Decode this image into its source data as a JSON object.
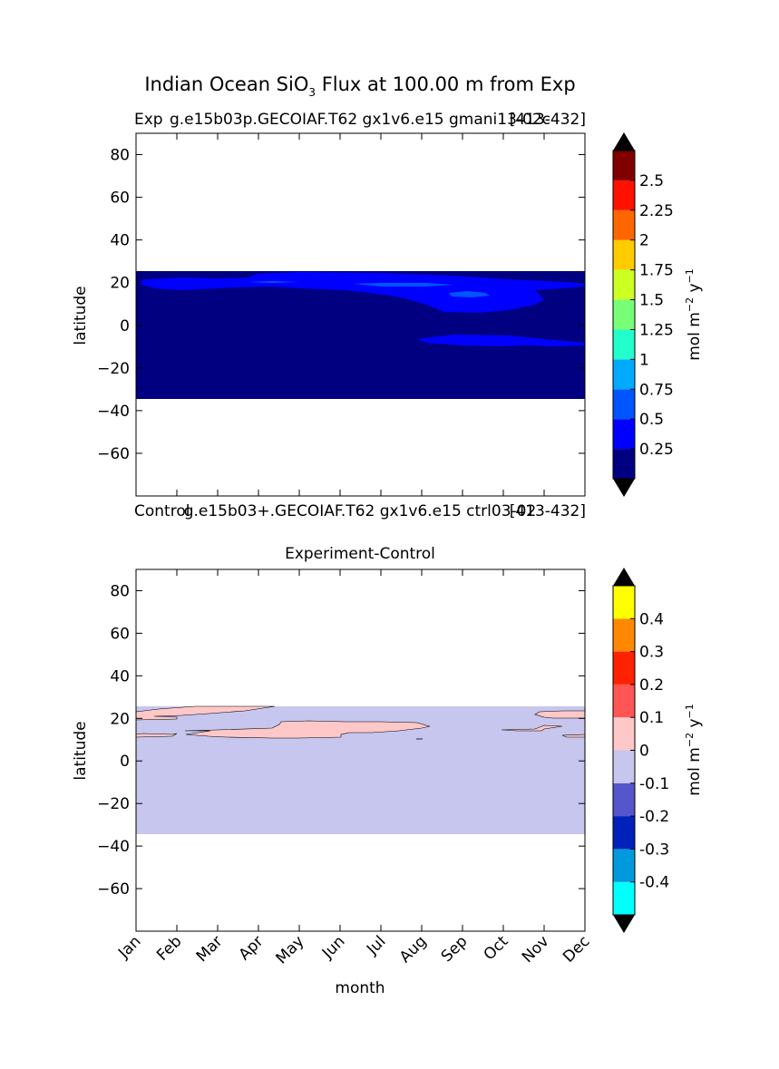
{
  "figure": {
    "title_main": "Indian Ocean SiO",
    "title_sub": "3",
    "title_rest": " Flux at 100.00 m from Exp"
  },
  "colorbar_unit": {
    "prefix": "mol m",
    "exp1": "−2",
    "mid": " y",
    "exp2": "−1"
  },
  "chart_data": [
    {
      "type": "heatmap",
      "panel": "experiment",
      "title_left": "Exp",
      "title_center": "g.e15b03p.GECOIAF.T62 gx1v6.e15 gmani13-02c",
      "title_right": "[413-432]",
      "xlabel": "",
      "ylabel": "latitude",
      "ylim": [
        -80,
        90
      ],
      "yticks": [
        "80",
        "60",
        "40",
        "20",
        "0",
        "−20",
        "−40",
        "−60"
      ],
      "x_categories": [
        "Jan",
        "Feb",
        "Mar",
        "Apr",
        "May",
        "Jun",
        "Jul",
        "Aug",
        "Sep",
        "Oct",
        "Nov",
        "Dec"
      ],
      "data_lat_range": [
        -34,
        26
      ],
      "background_level": "0–0.25",
      "contour_levels": [
        "0.25",
        "0.5",
        "0.75",
        "1",
        "1.25",
        "1.5",
        "1.75",
        "2",
        "2.25",
        "2.5"
      ],
      "level_colors": [
        "#000080",
        "#0000ff",
        "#0055ff",
        "#00aaff",
        "#22ffcc",
        "#77ff77",
        "#ccff22",
        "#ffcc00",
        "#ff6600",
        "#ff1100",
        "#800000"
      ],
      "extend": "both",
      "patches": [
        {
          "level": 1,
          "lat_range": [
            18,
            25
          ],
          "months": [
            0,
            11
          ],
          "note": "0.25–0.5 band along northern edge"
        },
        {
          "level": 1,
          "lat_range": [
            5,
            18
          ],
          "months": [
            6.5,
            10
          ],
          "note": "0.25–0.5 Aug–Oct"
        },
        {
          "level": 1,
          "lat_range": [
            -9,
            -4
          ],
          "months": [
            7,
            11
          ],
          "note": "0.25–0.5 southern band"
        },
        {
          "level": 2,
          "lat_range": [
            13,
            16
          ],
          "months": [
            8.2,
            8.9
          ],
          "note": "0.5–0.75 small core"
        }
      ]
    },
    {
      "type": "heatmap",
      "panel": "control",
      "title_left": "Control",
      "title_center": "g.e15b03+.GECOIAF.T62 gx1v6.e15 ctrl03-02",
      "title_right": "[413-432]"
    },
    {
      "type": "heatmap",
      "panel": "difference",
      "title": "Experiment-Control",
      "xlabel": "month",
      "ylabel": "latitude",
      "ylim": [
        -80,
        90
      ],
      "yticks": [
        "80",
        "60",
        "40",
        "20",
        "0",
        "−20",
        "−40",
        "−60"
      ],
      "x_categories": [
        "Jan",
        "Feb",
        "Mar",
        "Apr",
        "May",
        "Jun",
        "Jul",
        "Aug",
        "Sep",
        "Oct",
        "Nov",
        "Dec"
      ],
      "data_lat_range": [
        -34,
        26
      ],
      "background_level": "-0.1–0",
      "contour_levels": [
        "-0.4",
        "-0.3",
        "-0.2",
        "-0.1",
        "0",
        "0.1",
        "0.2",
        "0.3",
        "0.4"
      ],
      "level_colors": [
        "#00ffff",
        "#0099dd",
        "#0022bb",
        "#5555cc",
        "#c6c6ee",
        "#ffc8c8",
        "#ff5555",
        "#ff2200",
        "#ff8800",
        "#ffff00"
      ],
      "extend": "both",
      "patches": [
        {
          "level": "0–0.1",
          "lat_range": [
            20,
            26
          ],
          "months": [
            0,
            3.4
          ],
          "note": "north-west"
        },
        {
          "level": "0–0.1",
          "lat_range": [
            11,
            19
          ],
          "months": [
            1.2,
            7.2
          ],
          "note": "Feb–Aug band"
        },
        {
          "level": "0–0.1",
          "lat_range": [
            14,
            16
          ],
          "months": [
            8.9,
            10
          ],
          "note": "Oct–Nov strip"
        },
        {
          "level": "0–0.1",
          "lat_range": [
            11,
            24
          ],
          "months": [
            10,
            11
          ],
          "note": "Nov–Dec edge"
        }
      ]
    }
  ],
  "colorbars": [
    {
      "panel": "experiment",
      "labels": [
        "2.5",
        "2.25",
        "2",
        "1.75",
        "1.5",
        "1.25",
        "1",
        "0.75",
        "0.5",
        "0.25"
      ]
    },
    {
      "panel": "difference",
      "labels": [
        "0.4",
        "0.3",
        "0.2",
        "0.1",
        "0",
        "-0.1",
        "-0.2",
        "-0.3",
        "-0.4"
      ]
    }
  ]
}
